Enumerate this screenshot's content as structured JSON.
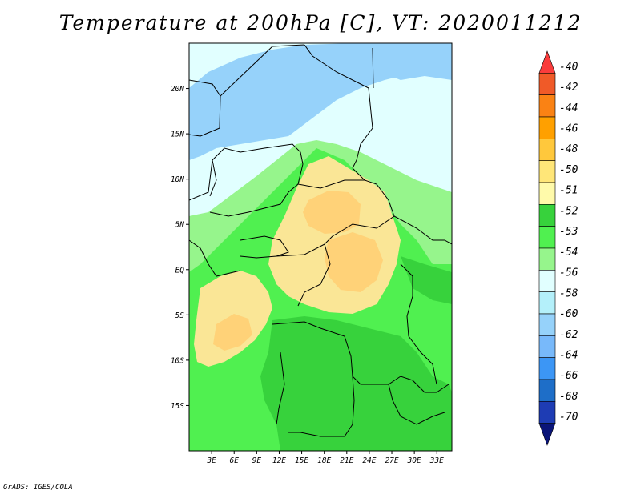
{
  "title": "Temperature at 200hPa [C], VT: 2020011212",
  "credit": "GrADS: IGES/COLA",
  "map": {
    "lon_range": [
      0,
      35
    ],
    "lat_range": [
      -20,
      25
    ],
    "lat_ticks": [
      {
        "value": 20,
        "label": "20N"
      },
      {
        "value": 15,
        "label": "15N"
      },
      {
        "value": 10,
        "label": "10N"
      },
      {
        "value": 5,
        "label": "5N"
      },
      {
        "value": 0,
        "label": "EQ"
      },
      {
        "value": -5,
        "label": "5S"
      },
      {
        "value": -10,
        "label": "10S"
      },
      {
        "value": -15,
        "label": "15S"
      }
    ],
    "lon_ticks": [
      {
        "value": 3,
        "label": "3E"
      },
      {
        "value": 6,
        "label": "6E"
      },
      {
        "value": 9,
        "label": "9E"
      },
      {
        "value": 12,
        "label": "12E"
      },
      {
        "value": 15,
        "label": "15E"
      },
      {
        "value": 18,
        "label": "18E"
      },
      {
        "value": 21,
        "label": "21E"
      },
      {
        "value": 24,
        "label": "24E"
      },
      {
        "value": 27,
        "label": "27E"
      },
      {
        "value": 30,
        "label": "30E"
      },
      {
        "value": 33,
        "label": "33E"
      }
    ],
    "fill_colors": {
      "band_56": "#96d2fa",
      "band_54": "#e1ffff",
      "band_53": "#96f58c",
      "band_52": "#50f050",
      "band_51": "#37d23c",
      "band_50": "#fae696",
      "band_48": "#ffd278"
    }
  },
  "colorbar": {
    "labels": [
      "-40",
      "-42",
      "-44",
      "-46",
      "-48",
      "-50",
      "-51",
      "-52",
      "-53",
      "-54",
      "-56",
      "-58",
      "-60",
      "-62",
      "-64",
      "-66",
      "-68",
      "-70"
    ],
    "colors": [
      "#fa3c3c",
      "#f05a28",
      "#fa8214",
      "#ffa000",
      "#ffc83c",
      "#ffe678",
      "#fffaaa",
      "#37d23c",
      "#50f050",
      "#96f58c",
      "#e1ffff",
      "#b4f0fa",
      "#96d2fa",
      "#78b9fa",
      "#3c96f5",
      "#1e6ec8",
      "#1e3cb4",
      "#0a1478"
    ]
  }
}
